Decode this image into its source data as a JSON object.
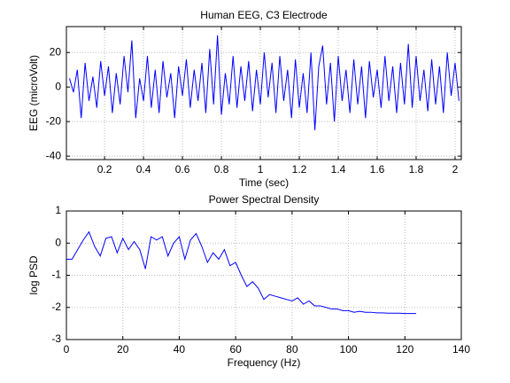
{
  "chart_data": [
    {
      "type": "line",
      "title": "Human EEG, C3 Electrode",
      "x_label": "Time (sec)",
      "y_label": "EEG (microVolt)",
      "xlim": [
        0.004,
        2.032
      ],
      "ylim": [
        -42,
        35
      ],
      "xticks": [
        0.2,
        0.4,
        0.6,
        0.8,
        1,
        1.2,
        1.4,
        1.6,
        1.8,
        2
      ],
      "yticks": [
        -40,
        -20,
        0,
        20
      ],
      "grid": true,
      "x": [
        0.02,
        0.04,
        0.06,
        0.08,
        0.1,
        0.12,
        0.14,
        0.16,
        0.18,
        0.2,
        0.22,
        0.24,
        0.26,
        0.28,
        0.3,
        0.32,
        0.34,
        0.36,
        0.38,
        0.4,
        0.42,
        0.44,
        0.46,
        0.48,
        0.5,
        0.52,
        0.54,
        0.56,
        0.58,
        0.6,
        0.62,
        0.64,
        0.66,
        0.68,
        0.7,
        0.72,
        0.74,
        0.76,
        0.78,
        0.8,
        0.82,
        0.84,
        0.86,
        0.88,
        0.9,
        0.92,
        0.94,
        0.96,
        0.98,
        1,
        1.02,
        1.04,
        1.06,
        1.08,
        1.1,
        1.12,
        1.14,
        1.16,
        1.18,
        1.2,
        1.22,
        1.24,
        1.26,
        1.28,
        1.3,
        1.32,
        1.34,
        1.36,
        1.38,
        1.4,
        1.42,
        1.44,
        1.46,
        1.48,
        1.5,
        1.52,
        1.54,
        1.56,
        1.58,
        1.6,
        1.62,
        1.64,
        1.66,
        1.68,
        1.7,
        1.72,
        1.74,
        1.76,
        1.78,
        1.8,
        1.82,
        1.84,
        1.86,
        1.88,
        1.9,
        1.92,
        1.94,
        1.96,
        1.98,
        2,
        2.02
      ],
      "series": [
        {
          "color": "#0000ff",
          "values": [
            5,
            -3,
            10,
            -18,
            14,
            -8,
            6,
            -12,
            15,
            -5,
            12,
            -15,
            8,
            -10,
            18,
            -3,
            27,
            -18,
            5,
            -8,
            18,
            -12,
            10,
            -15,
            15,
            -6,
            8,
            -18,
            12,
            -5,
            16,
            -12,
            10,
            -8,
            14,
            -15,
            22,
            -10,
            30,
            -16,
            8,
            -10,
            18,
            -12,
            12,
            -8,
            15,
            -14,
            10,
            -10,
            20,
            -6,
            14,
            -15,
            18,
            -8,
            10,
            -18,
            16,
            -12,
            8,
            -15,
            20,
            -25,
            12,
            24,
            -10,
            14,
            -20,
            18,
            -8,
            10,
            -15,
            16,
            -10,
            12,
            -18,
            15,
            -6,
            10,
            -12,
            18,
            -8,
            12,
            -15,
            14,
            -10,
            25,
            -12,
            18,
            -8,
            10,
            -14,
            16,
            -10,
            12,
            -15,
            20,
            -5,
            14,
            -8
          ]
        }
      ]
    },
    {
      "type": "line",
      "title": "Power Spectral Density",
      "x_label": "Frequency (Hz)",
      "y_label": "log PSD",
      "xlim": [
        0,
        140
      ],
      "ylim": [
        -3,
        1
      ],
      "xticks": [
        0,
        20,
        40,
        60,
        80,
        100,
        120,
        140
      ],
      "yticks": [
        -3,
        -2,
        -1,
        0,
        1
      ],
      "grid": true,
      "x": [
        0,
        2,
        4,
        6,
        8,
        10,
        12,
        14,
        16,
        18,
        20,
        22,
        24,
        26,
        28,
        30,
        32,
        34,
        36,
        38,
        40,
        42,
        44,
        46,
        48,
        50,
        52,
        54,
        56,
        58,
        60,
        62,
        64,
        66,
        68,
        70,
        72,
        74,
        76,
        78,
        80,
        82,
        84,
        86,
        88,
        90,
        92,
        94,
        96,
        98,
        100,
        102,
        104,
        106,
        108,
        110,
        112,
        114,
        116,
        118,
        120,
        122,
        124
      ],
      "series": [
        {
          "color": "#0000ff",
          "values": [
            -0.5,
            -0.5,
            -0.2,
            0.1,
            0.35,
            -0.1,
            -0.4,
            0.15,
            0.2,
            -0.3,
            0.15,
            -0.2,
            0.05,
            -0.2,
            -0.8,
            0.2,
            0.1,
            0.2,
            -0.4,
            0.0,
            0.2,
            -0.5,
            0.1,
            0.3,
            -0.1,
            -0.6,
            -0.3,
            -0.5,
            -0.2,
            -0.7,
            -0.6,
            -1.0,
            -1.35,
            -1.2,
            -1.4,
            -1.75,
            -1.6,
            -1.65,
            -1.7,
            -1.75,
            -1.8,
            -1.7,
            -1.9,
            -1.8,
            -1.95,
            -1.95,
            -2.0,
            -2.05,
            -2.05,
            -2.1,
            -2.1,
            -2.15,
            -2.12,
            -2.15,
            -2.15,
            -2.17,
            -2.17,
            -2.18,
            -2.18,
            -2.18,
            -2.19,
            -2.19,
            -2.19
          ]
        }
      ]
    }
  ]
}
